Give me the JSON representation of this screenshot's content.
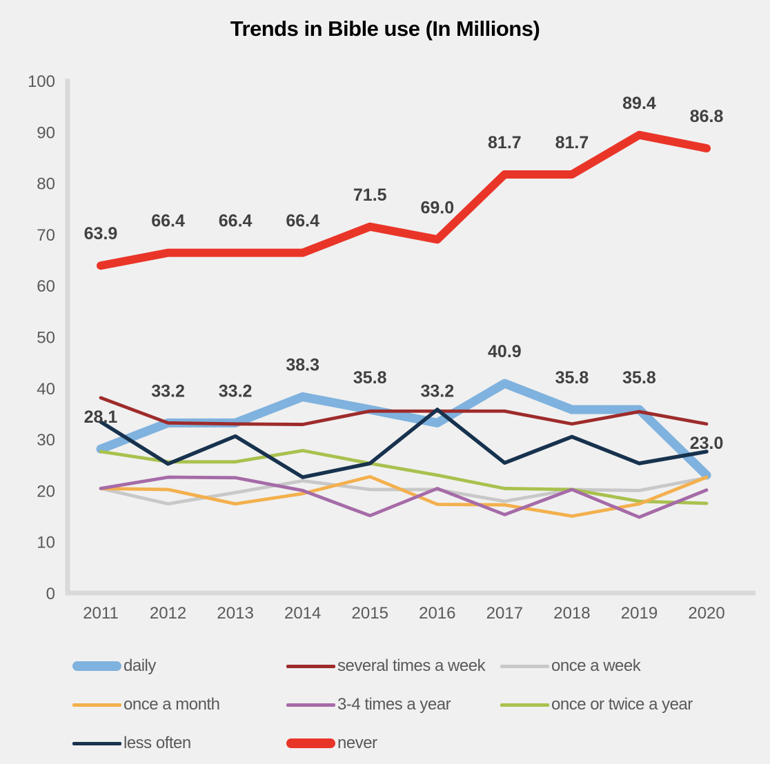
{
  "title": "Trends in Bible use (In Millions)",
  "chart_data": {
    "type": "line",
    "title": "Trends in Bible use (In Millions)",
    "x": [
      "2011",
      "2012",
      "2013",
      "2014",
      "2015",
      "2016",
      "2017",
      "2018",
      "2019",
      "2020"
    ],
    "ylim": [
      0,
      100
    ],
    "ytick_step": 10,
    "y_ticks": [
      "0",
      "10",
      "20",
      "30",
      "40",
      "50",
      "60",
      "70",
      "80",
      "90",
      "100"
    ],
    "grid": false,
    "legend_position": "bottom",
    "colors": {
      "background": "#F0F0F0",
      "axis": "#D9D9D9",
      "tick_text": "#595959",
      "data_label_text": "#404040",
      "title_text": "#000000"
    },
    "series": [
      {
        "name": "daily",
        "color": "#7FB2DE",
        "thick": true,
        "labeled": true,
        "values": [
          28.1,
          33.2,
          33.2,
          38.3,
          35.8,
          33.2,
          40.9,
          35.8,
          35.8,
          23.0
        ],
        "labels": [
          "28.1",
          "33.2",
          "33.2",
          "38.3",
          "35.8",
          "33.2",
          "40.9",
          "35.8",
          "35.8",
          "23.0"
        ]
      },
      {
        "name": "several times a week",
        "color": "#9E2B2B",
        "thick": false,
        "labeled": false,
        "values": [
          38.1,
          33.2,
          33.0,
          32.9,
          35.5,
          35.5,
          35.5,
          33.0,
          35.4,
          33.0
        ]
      },
      {
        "name": "once a week",
        "color": "#C8C8C8",
        "thick": false,
        "labeled": false,
        "values": [
          20.4,
          17.4,
          19.6,
          21.9,
          20.2,
          20.2,
          17.9,
          20.2,
          20.0,
          22.5
        ]
      },
      {
        "name": "once a month",
        "color": "#F3B04D",
        "thick": false,
        "labeled": false,
        "values": [
          20.4,
          20.2,
          17.4,
          19.4,
          22.7,
          17.3,
          17.2,
          15.0,
          17.4,
          22.6
        ]
      },
      {
        "name": "3-4 times a year",
        "color": "#A56BA7",
        "thick": false,
        "labeled": false,
        "values": [
          20.4,
          22.6,
          22.5,
          20.0,
          15.1,
          20.4,
          15.3,
          20.2,
          14.8,
          20.1
        ]
      },
      {
        "name": "once or twice a year",
        "color": "#A8C14E",
        "thick": false,
        "labeled": false,
        "values": [
          27.6,
          25.6,
          25.6,
          27.8,
          25.3,
          23.0,
          20.4,
          20.2,
          17.9,
          17.5
        ]
      },
      {
        "name": "less often",
        "color": "#17324E",
        "thick": false,
        "labeled": false,
        "values": [
          33.4,
          25.2,
          30.6,
          22.6,
          25.3,
          35.8,
          25.4,
          30.5,
          25.3,
          27.6
        ]
      },
      {
        "name": "never",
        "color": "#E93528",
        "thick": true,
        "labeled": true,
        "values": [
          63.9,
          66.4,
          66.4,
          66.4,
          71.5,
          69.0,
          81.7,
          81.7,
          89.4,
          86.8
        ],
        "labels": [
          "63.9",
          "66.4",
          "66.4",
          "66.4",
          "71.5",
          "69.0",
          "81.7",
          "81.7",
          "89.4",
          "86.8"
        ]
      }
    ],
    "draw_order": [
      0,
      2,
      5,
      1,
      3,
      4,
      6,
      7
    ]
  }
}
